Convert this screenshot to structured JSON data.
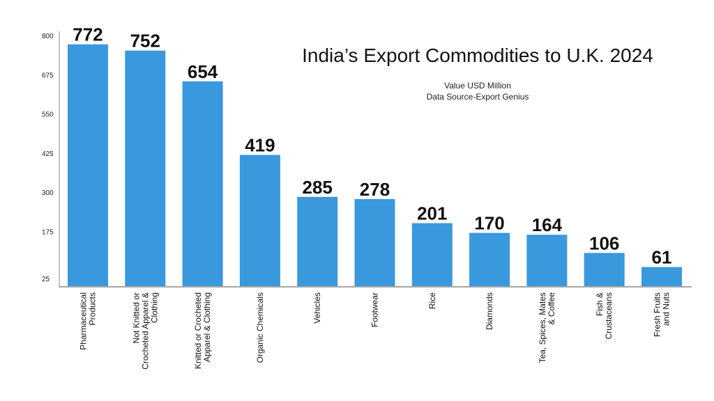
{
  "chart_data": {
    "type": "bar",
    "title": "India’s Export Commodities to U.K. 2024",
    "subtitle_lines": [
      "Value USD Million",
      "Data Source-Export Genius"
    ],
    "xlabel": "",
    "ylabel": "",
    "categories": [
      "Pharmaceutical Products",
      "Not Knitted or Crocheted Apparel & Clothing",
      "Knitted or Crocheted Apparel & Clothing",
      "Organic Chemicals",
      "Vehicles",
      "Footwear",
      "Rice",
      "Diamonds",
      "Tea, Spices, Mates & Coffee",
      "Fish & Crustaceans",
      "Fresh Fruits and Nuts"
    ],
    "category_label_lines": [
      [
        "Pharmaceutical",
        "Products"
      ],
      [
        "Not Knitted or",
        "Crocheted Apparel &",
        "Clothing"
      ],
      [
        "Knitted or Crocheted",
        "Apparel & Clothing"
      ],
      [
        "Organic Chemicals"
      ],
      [
        "Vehicles"
      ],
      [
        "Footwear"
      ],
      [
        "Rice"
      ],
      [
        "Diamonds"
      ],
      [
        "Tea, Spices, Mates",
        "& Coffee"
      ],
      [
        "Fish &",
        "Crustaceans"
      ],
      [
        "Fresh Fruits",
        "and Nuts"
      ]
    ],
    "values": [
      772,
      752,
      654,
      419,
      285,
      278,
      201,
      170,
      164,
      106,
      61
    ],
    "data_labels": [
      "772",
      "752",
      "654",
      "419",
      "285",
      "278",
      "201",
      "170",
      "164",
      "106",
      "61"
    ],
    "y_ticks": [
      25,
      175,
      300,
      425,
      550,
      675,
      800
    ],
    "ylim": [
      0,
      800
    ],
    "grid": false,
    "legend": "none",
    "bar_color": "#3a98dc",
    "axis_color": "#888888"
  }
}
